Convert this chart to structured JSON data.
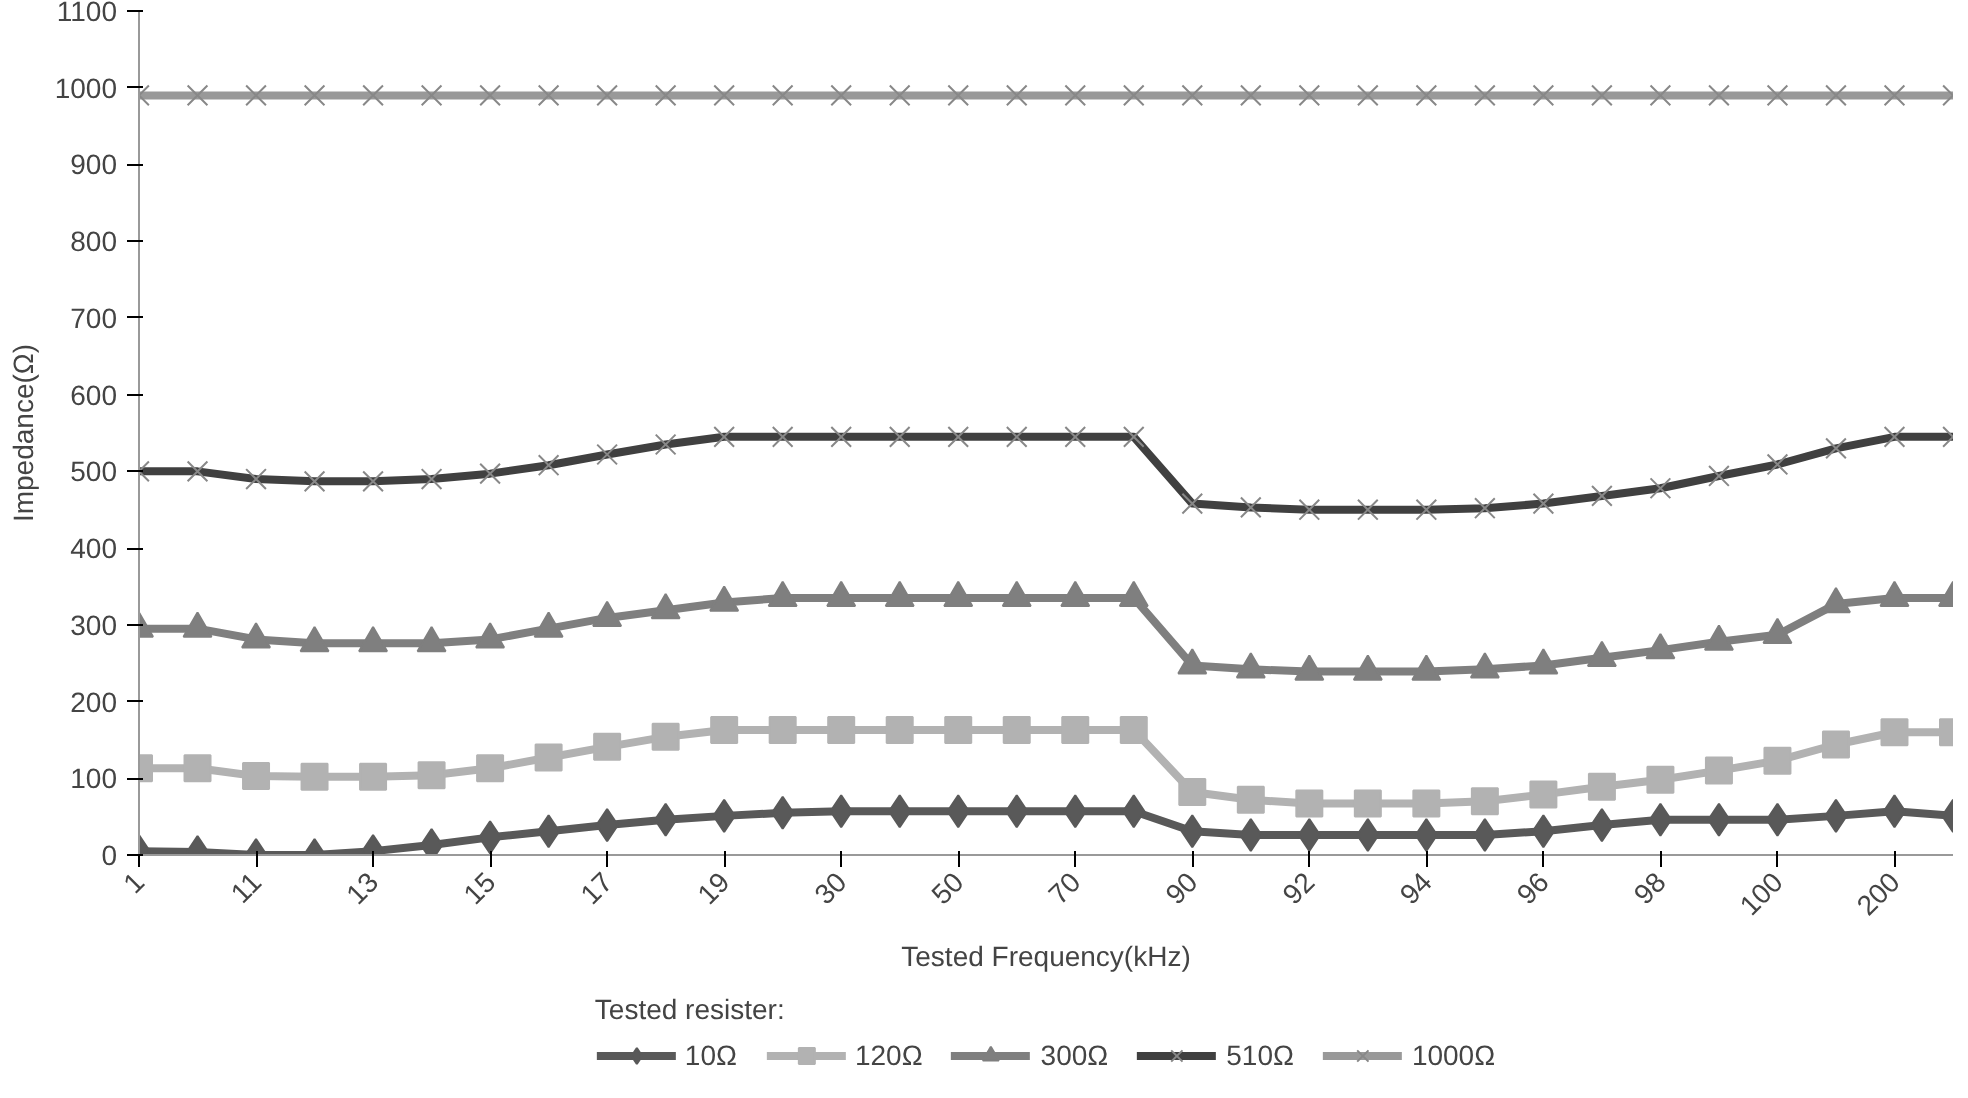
{
  "chart_data": {
    "type": "line",
    "xlabel": "Tested Frequency(kHz)",
    "ylabel": "Impedance(Ω)",
    "legend_title": "Tested resister:",
    "categories": [
      "1",
      null,
      "11",
      null,
      "13",
      null,
      "15",
      null,
      "17",
      null,
      "19",
      null,
      "30",
      null,
      "50",
      null,
      "70",
      null,
      "90",
      null,
      "92",
      null,
      "94",
      null,
      "96",
      null,
      "98",
      null,
      "100",
      null,
      "200",
      null
    ],
    "ylim": [
      0,
      1100
    ],
    "yticks": [
      0,
      100,
      200,
      300,
      400,
      500,
      600,
      700,
      800,
      900,
      1000,
      1100
    ],
    "grid": false,
    "legend": "bottom",
    "series": [
      {
        "name": "10Ω",
        "color": "#595959",
        "marker": "diamond",
        "values": [
          5,
          4,
          0,
          0,
          5,
          13,
          23,
          31,
          39,
          46,
          51,
          55,
          57,
          57,
          57,
          57,
          57,
          57,
          31,
          26,
          26,
          26,
          26,
          26,
          31,
          39,
          46,
          46,
          46,
          51,
          57,
          51
        ]
      },
      {
        "name": "120Ω",
        "color": "#b2b2b2",
        "marker": "square",
        "values": [
          113,
          113,
          103,
          102,
          102,
          104,
          113,
          127,
          141,
          154,
          163,
          163,
          163,
          163,
          163,
          163,
          163,
          163,
          82,
          72,
          67,
          67,
          67,
          70,
          79,
          89,
          98,
          110,
          123,
          144,
          160,
          160
        ]
      },
      {
        "name": "300Ω",
        "color": "#7f7f7f",
        "marker": "triangle",
        "values": [
          295,
          295,
          281,
          276,
          276,
          276,
          281,
          295,
          309,
          319,
          329,
          335,
          335,
          335,
          335,
          335,
          335,
          335,
          247,
          242,
          239,
          239,
          239,
          242,
          247,
          257,
          267,
          278,
          287,
          327,
          335,
          335
        ]
      },
      {
        "name": "510Ω",
        "color": "#404040",
        "marker": "cross",
        "values": [
          500,
          500,
          490,
          487,
          487,
          490,
          497,
          508,
          522,
          535,
          545,
          545,
          545,
          545,
          545,
          545,
          545,
          545,
          458,
          453,
          450,
          450,
          450,
          452,
          458,
          468,
          478,
          494,
          509,
          530,
          545,
          545
        ]
      },
      {
        "name": "1000Ω",
        "color": "#999999",
        "marker": "cross",
        "values": [
          990,
          990,
          990,
          990,
          990,
          990,
          990,
          990,
          990,
          990,
          990,
          990,
          990,
          990,
          990,
          990,
          990,
          990,
          990,
          990,
          990,
          990,
          990,
          990,
          990,
          990,
          990,
          990,
          990,
          990,
          990,
          990
        ]
      }
    ]
  }
}
